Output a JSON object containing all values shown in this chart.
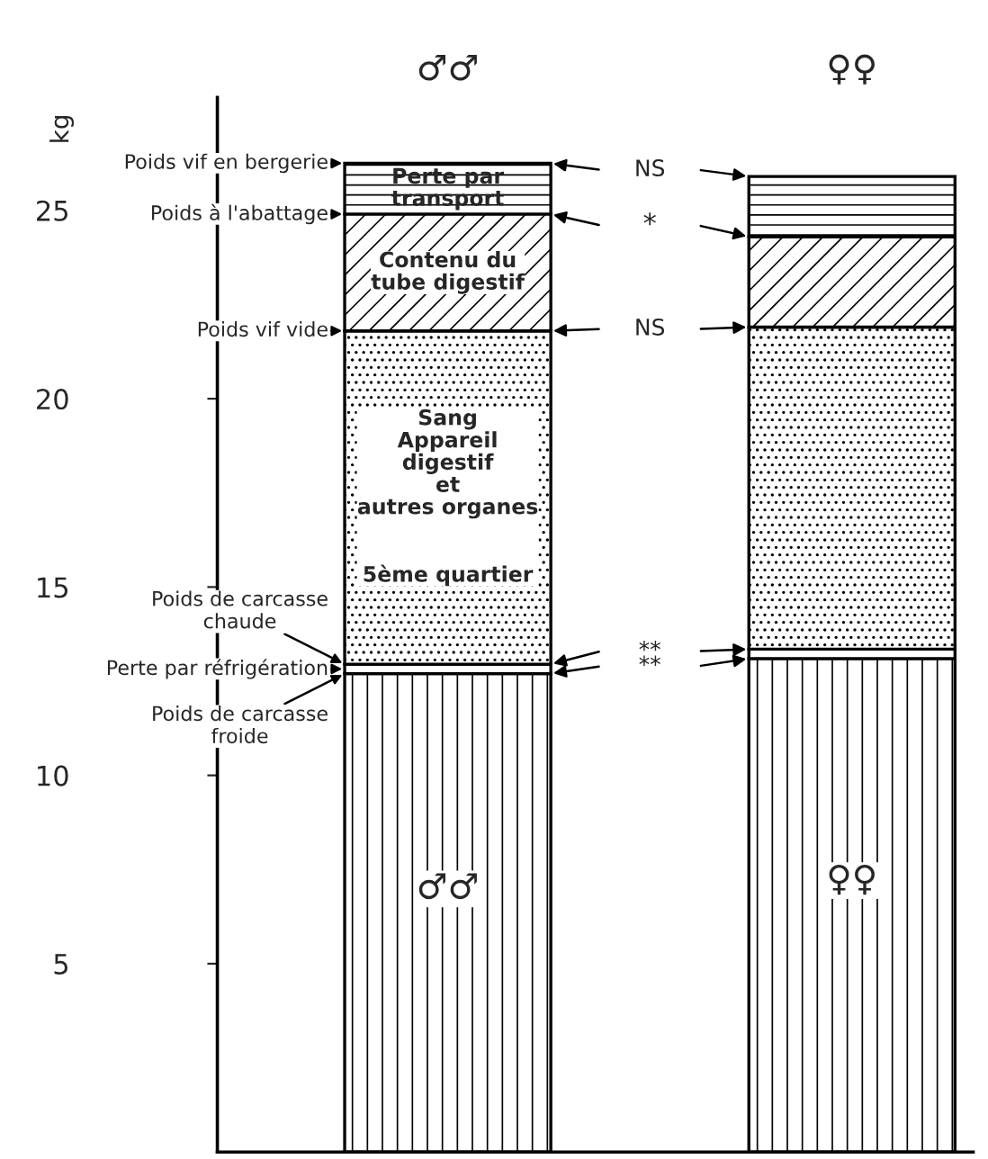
{
  "chart_data": {
    "type": "bar",
    "stacked": true,
    "ylabel": "kg",
    "categories": [
      "♂♂",
      "♀♀"
    ],
    "series": [
      {
        "values": [
          12.7,
          13.1
        ]
      },
      {
        "name": "Perte par réfrigération",
        "values": [
          0.25,
          0.25
        ]
      },
      {
        "name": "Sang\nAppareil\ndigestif\net\nautres organes\n\n\n5ème quartier",
        "values": [
          8.85,
          8.55
        ]
      },
      {
        "name": "Contenu du\ntube digestif",
        "values": [
          3.1,
          2.4
        ]
      },
      {
        "name": "Perte par\ntransport",
        "values": [
          1.35,
          1.6
        ]
      }
    ],
    "ylim": [
      0,
      28
    ],
    "yticks": [
      5,
      10,
      15,
      20,
      25
    ],
    "annotations": [
      "Poids de carcasse\nfroide",
      "Poids de carcasse\nchaude",
      "Poids vif vide",
      "Poids à l'abattage",
      "Poids vif en bergerie",
      "**",
      "**",
      "NS",
      "*",
      "NS",
      "♂♂",
      "♀♀"
    ]
  }
}
